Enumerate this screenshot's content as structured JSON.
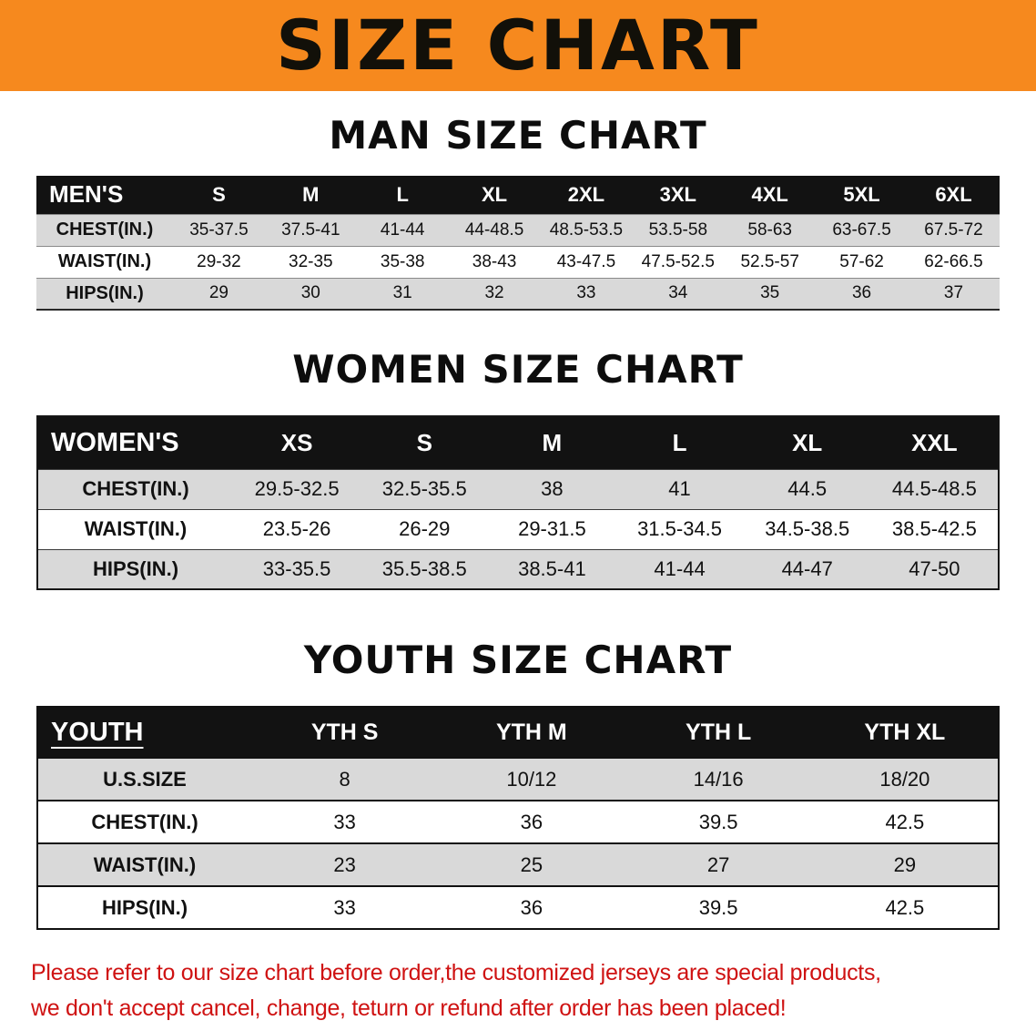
{
  "banner": {
    "title": "SIZE CHART"
  },
  "colors": {
    "banner_bg": "#f6891e",
    "table_header_bg": "#121212",
    "row_stripe": "#d9d9d9",
    "disclaimer_red": "#cf1212"
  },
  "chart_data": [
    {
      "type": "table",
      "title": "MAN SIZE CHART",
      "header": [
        "MEN'S",
        "S",
        "M",
        "L",
        "XL",
        "2XL",
        "3XL",
        "4XL",
        "5XL",
        "6XL"
      ],
      "rows": [
        [
          "CHEST(IN.)",
          "35-37.5",
          "37.5-41",
          "41-44",
          "44-48.5",
          "48.5-53.5",
          "53.5-58",
          "58-63",
          "63-67.5",
          "67.5-72"
        ],
        [
          "WAIST(IN.)",
          "29-32",
          "32-35",
          "35-38",
          "38-43",
          "43-47.5",
          "47.5-52.5",
          "52.5-57",
          "57-62",
          "62-66.5"
        ],
        [
          "HIPS(IN.)",
          "29",
          "30",
          "31",
          "32",
          "33",
          "34",
          "35",
          "36",
          "37"
        ]
      ]
    },
    {
      "type": "table",
      "title": "WOMEN SIZE CHART",
      "header": [
        "WOMEN'S",
        "XS",
        "S",
        "M",
        "L",
        "XL",
        "XXL"
      ],
      "rows": [
        [
          "CHEST(IN.)",
          "29.5-32.5",
          "32.5-35.5",
          "38",
          "41",
          "44.5",
          "44.5-48.5"
        ],
        [
          "WAIST(IN.)",
          "23.5-26",
          "26-29",
          "29-31.5",
          "31.5-34.5",
          "34.5-38.5",
          "38.5-42.5"
        ],
        [
          "HIPS(IN.)",
          "33-35.5",
          "35.5-38.5",
          "38.5-41",
          "41-44",
          "44-47",
          "47-50"
        ]
      ]
    },
    {
      "type": "table",
      "title": "YOUTH SIZE CHART",
      "header": [
        "YOUTH",
        "YTH S",
        "YTH M",
        "YTH L",
        "YTH XL"
      ],
      "rows": [
        [
          "U.S.SIZE",
          "8",
          "10/12",
          "14/16",
          "18/20"
        ],
        [
          "CHEST(IN.)",
          "33",
          "36",
          "39.5",
          "42.5"
        ],
        [
          "WAIST(IN.)",
          "23",
          "25",
          "27",
          "29"
        ],
        [
          "HIPS(IN.)",
          "33",
          "36",
          "39.5",
          "42.5"
        ]
      ]
    }
  ],
  "disclaimer": {
    "line1": "Please refer to our size chart before order,the customized jerseys are special products,",
    "line2": "we don't accept cancel, change, teturn or refund after order has been placed!"
  }
}
